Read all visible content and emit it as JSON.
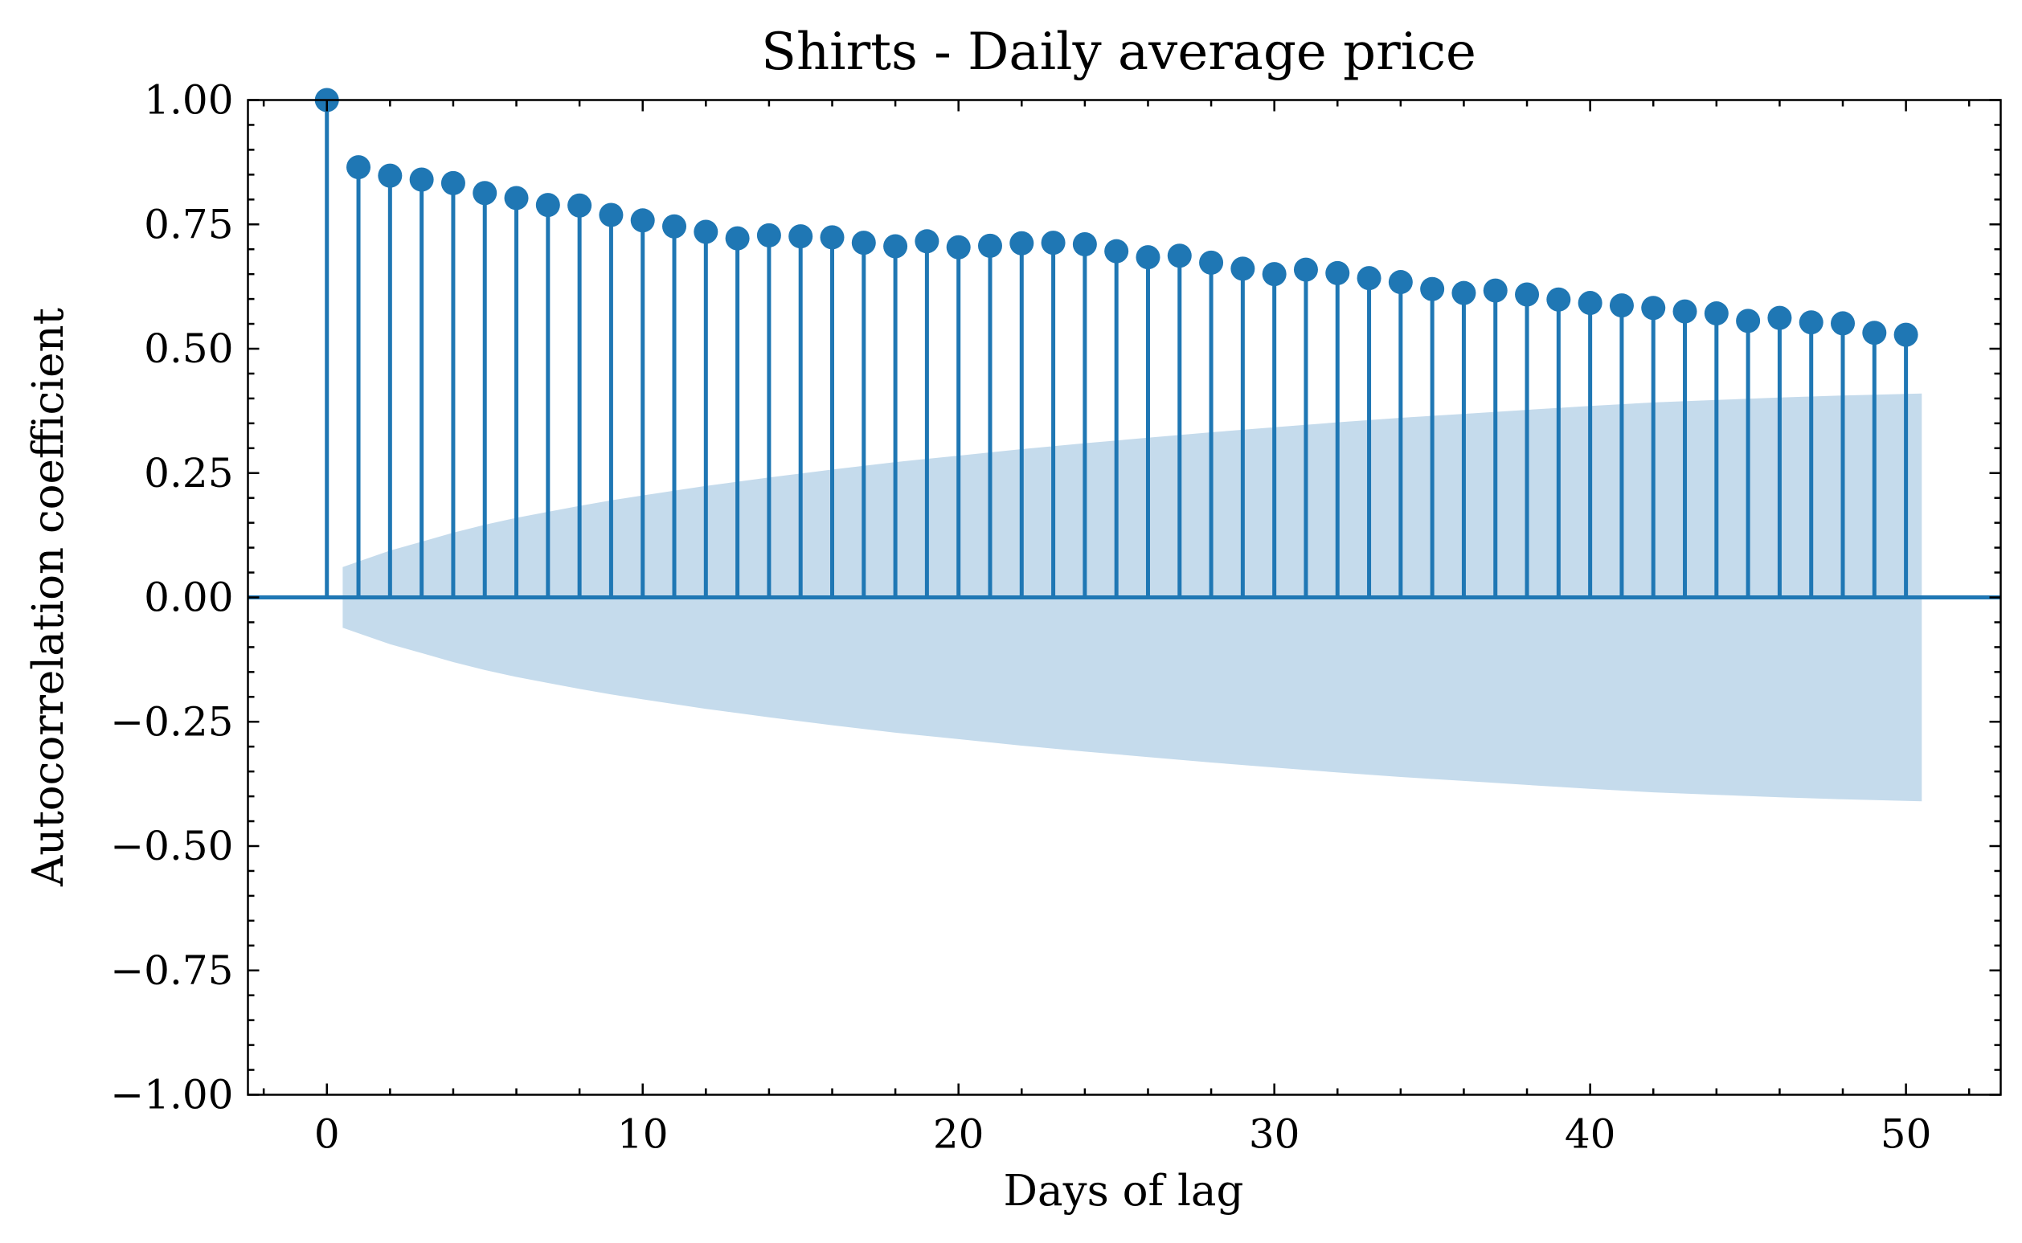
{
  "chart_data": {
    "type": "stem",
    "title": "Shirts - Daily average price",
    "xlabel": "Days of lag",
    "ylabel": "Autocorrelation coefficient",
    "xlim": [
      -2.5,
      53
    ],
    "ylim": [
      -1.0,
      1.0
    ],
    "x_ticks": [
      0,
      10,
      20,
      30,
      40,
      50
    ],
    "x_tick_labels": [
      "0",
      "10",
      "20",
      "30",
      "40",
      "50"
    ],
    "y_ticks": [
      1.0,
      0.75,
      0.5,
      0.25,
      0.0,
      -0.25,
      -0.5,
      -0.75,
      -1.0
    ],
    "y_tick_labels": [
      "1.00",
      "0.75",
      "0.50",
      "0.25",
      "0.00",
      "−0.25",
      "−0.50",
      "−0.75",
      "−1.00"
    ],
    "grid": false,
    "colors": {
      "stem": "#1f77b4",
      "confidence_band": "#c5dbec"
    },
    "lags": [
      0,
      1,
      2,
      3,
      4,
      5,
      6,
      7,
      8,
      9,
      10,
      11,
      12,
      13,
      14,
      15,
      16,
      17,
      18,
      19,
      20,
      21,
      22,
      23,
      24,
      25,
      26,
      27,
      28,
      29,
      30,
      31,
      32,
      33,
      34,
      35,
      36,
      37,
      38,
      39,
      40,
      41,
      42,
      43,
      44,
      45,
      46,
      47,
      48,
      49,
      50
    ],
    "acf": [
      1.0,
      0.865,
      0.848,
      0.84,
      0.833,
      0.813,
      0.803,
      0.789,
      0.788,
      0.769,
      0.758,
      0.746,
      0.735,
      0.722,
      0.728,
      0.726,
      0.724,
      0.713,
      0.706,
      0.716,
      0.704,
      0.707,
      0.712,
      0.713,
      0.71,
      0.696,
      0.684,
      0.687,
      0.673,
      0.661,
      0.65,
      0.659,
      0.652,
      0.642,
      0.634,
      0.62,
      0.612,
      0.617,
      0.609,
      0.599,
      0.592,
      0.587,
      0.582,
      0.575,
      0.571,
      0.556,
      0.562,
      0.553,
      0.551,
      0.532,
      0.528
    ],
    "confidence_band": {
      "lags": [
        0.5,
        1,
        2,
        3,
        4,
        5,
        6,
        7,
        8,
        9,
        10,
        12,
        14,
        16,
        18,
        20,
        22,
        24,
        26,
        28,
        30,
        32,
        34,
        36,
        38,
        40,
        42,
        44,
        46,
        48,
        50,
        50.5
      ],
      "upper": [
        0.061,
        0.072,
        0.094,
        0.112,
        0.13,
        0.146,
        0.16,
        0.172,
        0.184,
        0.195,
        0.205,
        0.224,
        0.241,
        0.257,
        0.272,
        0.285,
        0.298,
        0.31,
        0.321,
        0.332,
        0.342,
        0.352,
        0.361,
        0.369,
        0.377,
        0.385,
        0.392,
        0.397,
        0.402,
        0.406,
        0.409,
        0.41
      ]
    }
  }
}
